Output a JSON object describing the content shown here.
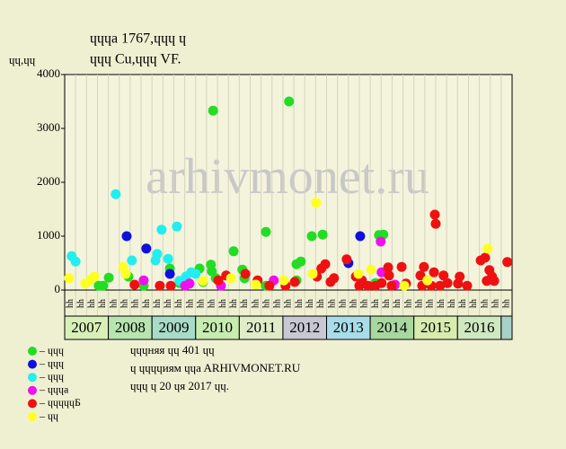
{
  "chart_data": {
    "type": "scatter",
    "title": "ɥɥɥa 1767,ɥɥɥ ɥ",
    "subtitle": "ɥɥɥ Cu,ɥɥɥ VF.",
    "y_label": "ɥɥ,ɥɥ",
    "watermark": "arhivmonet.ru",
    "xlim": [
      2007,
      2017.25
    ],
    "ylim": [
      0,
      4000
    ],
    "yticks": [
      0,
      1000,
      2000,
      3000,
      4000
    ],
    "xticks": [
      2007,
      2008,
      2009,
      2010,
      2011,
      2012,
      2013,
      2014,
      2015,
      2016
    ],
    "year_colors": [
      "#d8f0b8",
      "#b8e4b0",
      "#a8dcc8",
      "#c8ecb0",
      "#e0ecc8",
      "#c8c8d4",
      "#a8dce8",
      "#a8d8a0",
      "#d8ecb0",
      "#d0e8c0"
    ],
    "x_sublabels": [
      "ɥɥ",
      "ɥɥ",
      "ɥɥ",
      "ɥɥ",
      "ɥɥ",
      "ɥɥ",
      "ɥɥ",
      "ɥɥ",
      "ɥɥ",
      "ɥɥ",
      "ɥɥ",
      "ɥɥ",
      "ɥɥ",
      "ɥɥ",
      "ɥɥ",
      "ɥɥ",
      "ɥɥ",
      "ɥɥ",
      "ɥɥ",
      "ɥɥ",
      "ɥɥ",
      "ɥɥ",
      "ɥɥ",
      "ɥɥ",
      "ɥɥ",
      "ɥɥ",
      "ɥɥ",
      "ɥɥ",
      "ɥɥ",
      "ɥɥ",
      "ɥɥ",
      "ɥɥ",
      "ɥɥ",
      "ɥɥ",
      "ɥɥ",
      "ɥɥ",
      "ɥɥ",
      "ɥɥ",
      "ɥɥ",
      "ɥɥ",
      "ɥɥ"
    ],
    "notes": [
      "ɥɥɥняя ɥɥ 401 ɥɥ",
      "ɥ ɥɥɥɥиям ɥɥa ARHIVMONET.RU",
      "ɥɥɥ ɥ 20 ɥя 2017 ɥɥ."
    ],
    "series": [
      {
        "name": "– ɥɥɥ",
        "color": "#22dd22",
        "x": [
          2007.78,
          2007.88,
          2008.01,
          2008.46,
          2008.81,
          2009.41,
          2009.63,
          2010.09,
          2010.17,
          2010.35,
          2010.4,
          2010.37,
          2010.46,
          2010.87,
          2011.07,
          2011.12,
          2011.61,
          2011.61,
          2012.14,
          2012.31,
          2012.41,
          2012.66,
          2012.91,
          2012.31,
          2014.2,
          2014.3,
          2014.12
        ],
        "values": [
          80,
          80,
          230,
          250,
          80,
          400,
          130,
          400,
          150,
          470,
          3330,
          350,
          220,
          720,
          380,
          220,
          1080,
          80,
          3500,
          480,
          530,
          1000,
          1030,
          180,
          1020,
          1030,
          130
        ]
      },
      {
        "name": "– ɥɥɥ",
        "color": "#1010dd",
        "x": [
          2008.42,
          2008.87,
          2009.41,
          2013.5,
          2013.77
        ],
        "values": [
          1000,
          770,
          300,
          500,
          1000
        ]
      },
      {
        "name": "– ɥɥɥ",
        "color": "#22eeee",
        "x": [
          2007.16,
          2007.25,
          2008.17,
          2008.54,
          2009.08,
          2009.12,
          2009.22,
          2009.37,
          2009.57,
          2009.78,
          2010.0,
          2009.63,
          2009.9
        ],
        "values": [
          630,
          530,
          1780,
          550,
          550,
          670,
          1120,
          580,
          1180,
          250,
          300,
          170,
          330
        ]
      },
      {
        "name": "– ɥɥɥa",
        "color": "#ee11ee",
        "x": [
          2008.81,
          2009.76,
          2009.86,
          2010.58,
          2011.79,
          2014.24,
          2014.26,
          2014.57
        ],
        "values": [
          180,
          80,
          120,
          80,
          180,
          900,
          330,
          100
        ]
      },
      {
        "name": "– ɥɥɥɥɥБ",
        "color": "#ee1111",
        "x": [
          2008.6,
          2009.18,
          2009.43,
          2010.52,
          2010.7,
          2011.14,
          2011.42,
          2011.69,
          2012.06,
          2012.27,
          2012.78,
          2012.88,
          2012.97,
          2013.09,
          2013.17,
          2013.46,
          2013.67,
          2013.75,
          2013.81,
          2013.95,
          2014.12,
          2014.26,
          2014.41,
          2014.43,
          2014.49,
          2014.72,
          2014.82,
          2015.15,
          2015.19,
          2015.23,
          2015.4,
          2015.48,
          2015.5,
          2015.46,
          2015.6,
          2015.68,
          2015.77,
          2016.01,
          2016.05,
          2016.22,
          2016.53,
          2016.63,
          2016.67,
          2016.73,
          2016.79,
          2016.84,
          2017.14
        ],
        "values": [
          100,
          80,
          80,
          180,
          270,
          300,
          180,
          80,
          80,
          150,
          250,
          400,
          480,
          150,
          220,
          570,
          250,
          80,
          180,
          80,
          80,
          130,
          420,
          270,
          80,
          430,
          120,
          270,
          80,
          430,
          80,
          1400,
          1230,
          330,
          80,
          270,
          130,
          120,
          250,
          80,
          550,
          600,
          170,
          370,
          250,
          170,
          520
        ]
      },
      {
        "name": "– ɥɥ",
        "color": "#ffff22",
        "x": [
          2007.1,
          2007.47,
          2007.58,
          2007.68,
          2008.34,
          2008.4,
          2010.17,
          2010.81,
          2011.38,
          2012.02,
          2012.68,
          2012.76,
          2013.73,
          2014.02,
          2014.78,
          2015.31,
          2016.69
        ],
        "values": [
          220,
          120,
          180,
          250,
          430,
          300,
          170,
          220,
          100,
          180,
          300,
          1620,
          300,
          380,
          80,
          180,
          770
        ]
      }
    ]
  }
}
